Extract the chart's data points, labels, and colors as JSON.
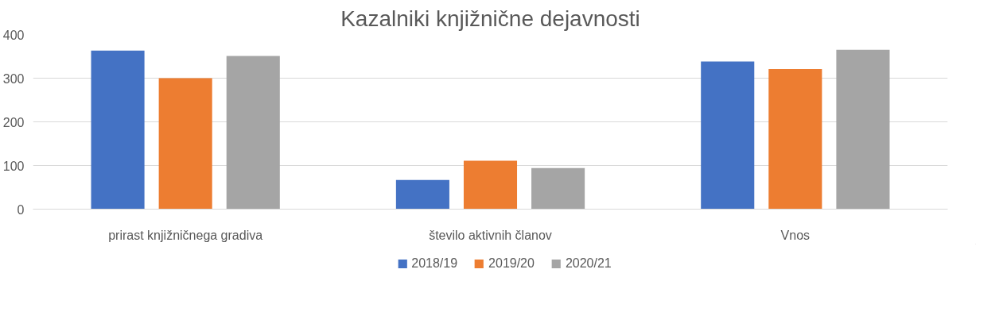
{
  "chart_data": {
    "type": "bar",
    "title": "Kazalniki knjižnične dejavnosti",
    "categories": [
      "prirast knjižničnega gradiva",
      "število aktivnih članov",
      "Vnos"
    ],
    "series": [
      {
        "name": "2018/19",
        "color": "#4472c4",
        "values": [
          363,
          67,
          338
        ]
      },
      {
        "name": "2019/20",
        "color": "#ed7d31",
        "values": [
          300,
          111,
          321
        ]
      },
      {
        "name": "2020/21",
        "color": "#a5a5a5",
        "values": [
          351,
          94,
          365
        ]
      }
    ],
    "ylim": [
      0,
      400
    ],
    "yticks": [
      0,
      100,
      200,
      300,
      400
    ],
    "grid": "y",
    "legend": "bottom"
  }
}
